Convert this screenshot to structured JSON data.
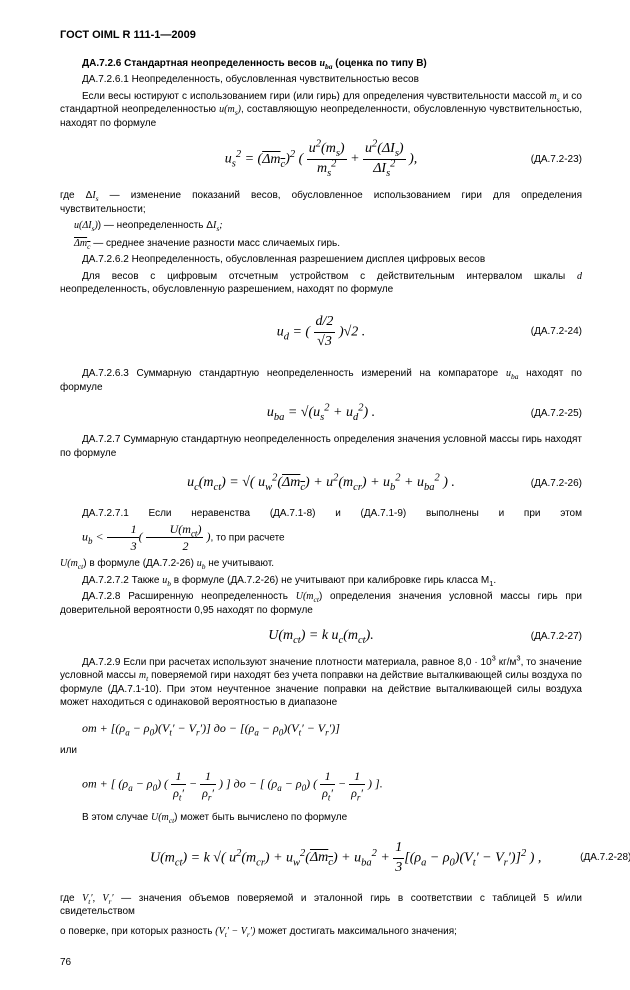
{
  "doc_id": "ГОСТ OIML R 111-1—2009",
  "page_number": "76",
  "sections": {
    "s1_title_prefix": "ДА.7.2.6 Стандартная неопределенность весов ",
    "s1_title_var": "u",
    "s1_title_sub": "ba",
    "s1_title_suffix": "  (оценка по типу В)",
    "s1_1": "ДА.7.2.6.1 Неопределенность, обусловленная чувствительностью весов",
    "s1_2a": "Если весы юстируют с использованием гири (или гирь) для определения чувствительности массой ",
    "s1_2b": " и со стандартной неопределенностью ",
    "s1_2c": ", составляющую неопределенности, обусловленную чувствительностью, находят по формуле",
    "eq23": "(ДА.7.2-23)",
    "s1_where_a": "где Δ",
    "s1_where_b": " — изменение показаний весов, обусловленное использованием гири для определения чувствительности;",
    "s1_where2a": "     u(Δ",
    "s1_where2b": ") — неопределенность Δ",
    "s1_where3": " — среднее значение разности масс сличаемых гирь.",
    "s2_1": "ДА.7.2.6.2 Неопределенность, обусловленная разрешением дисплея цифровых весов",
    "s2_2a": "Для весов с цифровым отсчетным устройством с действительным интервалом шкалы ",
    "s2_2b": "  неопределенность, обусловленную разрешением, находят по формуле",
    "eq24": "(ДА.7.2-24)",
    "s3_1a": "ДА.7.2.6.3 Суммарную стандартную неопределенность измерений на компараторе ",
    "s3_1b": " находят по формуле",
    "eq25": "(ДА.7.2-25)",
    "s4_1": "ДА.7.2.7 Суммарную стандартную неопределенность определения значения условной массы гирь находят по формуле",
    "eq26": "(ДА.7.2-26)",
    "s5_1a": "ДА.7.2.7.1 Если неравенства (ДА.7.1-8) и (ДА.7.1-9) выполнены и при этом   ",
    "s5_1b": ",  то при расчете",
    "s5_2a": "U(",
    "s5_2b": ")  в формуле (ДА.7.2-26) ",
    "s5_2c": "  не учитывают.",
    "s5_3a": "ДА.7.2.7.2 Также ",
    "s5_3b": "  в формуле (ДА.7.2-26) не учитывают при калибровке гирь класса M",
    "s5_3c": ".",
    "s6_1a": "ДА.7.2.8 Расширенную неопределенность ",
    "s6_1b": ")  определения значения  условной массы  гирь при доверительной вероятности 0,95  находят по формуле",
    "eq27": "(ДА.7.2-27)",
    "s7_1a": "ДА.7.2.9  Если при расчетах используют значение плотности материала, равное 8,0 · 10",
    "s7_1b": " кг/м",
    "s7_1c": ", то значение условной массы ",
    "s7_1d": " поверяемой гири находят без учета поправки на действие выталкивающей силы воздуха по формуле (ДА.7.1-10). При этом неучтенное значение поправки на действие выталкивающей силы воздуха может находиться с одинаковой вероятностью в диапазоне",
    "s7_or": "или",
    "s7_2a": "В этом случае ",
    "s7_2b": ")  может быть вычислено по формуле",
    "eq28": "(ДА.7.2-28)",
    "s8_1a": "где ",
    "s8_1b": "  — значения объемов поверяемой и эталонной гирь в соответствии с таблицей 5 и/или свидетельством",
    "s8_2a": "о поверке, при которых разность ",
    "s8_2b": "  может достигать максимального значения;"
  },
  "formulas": {
    "f23": "u<sub>s</sub><sup>2</sup> = (<span class=\"overline\">Δm<sub>c</sub></span>)<sup>2</sup> ( <span style=\"display:inline-block;vertical-align:middle;text-align:center;\"><span style=\"display:block;border-bottom:1px solid #000;padding:0 2px;\">u<sup>2</sup>(m<sub>s</sub>)</span><span style=\"display:block;padding:0 2px;\">m<sub>s</sub><sup>2</sup></span></span> + <span style=\"display:inline-block;vertical-align:middle;text-align:center;\"><span style=\"display:block;border-bottom:1px solid #000;padding:0 2px;\">u<sup>2</sup>(ΔI<sub>s</sub>)</span><span style=\"display:block;padding:0 2px;\">ΔI<sub>s</sub><sup>2</sup></span></span> ),",
    "f24": "u<sub>d</sub> = ( <span style=\"display:inline-block;vertical-align:middle;text-align:center;\"><span style=\"display:block;border-bottom:1px solid #000;padding:0 2px;\">d/2</span><span style=\"display:block;padding:0 2px;\">√3</span></span> )√2 .",
    "f25": "u<sub>ba</sub> = √(u<sub>s</sub><sup>2</sup> + u<sub>d</sub><sup>2</sup>) .",
    "f26": "u<sub>c</sub>(m<sub>ct</sub>) = √( u<sub>w</sub><sup>2</sup>(<span class=\"overline\">Δm<sub>c</sub></span>) + u<sup>2</sup>(m<sub>cr</sub>) + u<sub>b</sub><sup>2</sup> + u<sub>ba</sub><sup>2</sup> ) .",
    "f27": "U(m<sub>ct</sub>) = k u<sub>c</sub>(m<sub>ct</sub>).",
    "f_range1": "от + [(ρ<sub>a</sub> − ρ<sub>0</sub>)(V<sub>t</sub>′ − V<sub>r</sub>′)]   до − [(ρ<sub>a</sub> − ρ<sub>0</sub>)(V<sub>t</sub>′ − V<sub>r</sub>′)]",
    "f_range2": "от + [ (ρ<sub>a</sub> − ρ<sub>0</sub>) ( <span style=\"display:inline-block;vertical-align:middle;text-align:center;\"><span style=\"display:block;border-bottom:1px solid #000;padding:0 2px;\">1</span><span style=\"display:block;padding:0 2px;\">ρ<sub>t</sub>′</span></span> − <span style=\"display:inline-block;vertical-align:middle;text-align:center;\"><span style=\"display:block;border-bottom:1px solid #000;padding:0 2px;\">1</span><span style=\"display:block;padding:0 2px;\">ρ<sub>r</sub>′</span></span> ) ]   до − [ (ρ<sub>a</sub> − ρ<sub>0</sub>) ( <span style=\"display:inline-block;vertical-align:middle;text-align:center;\"><span style=\"display:block;border-bottom:1px solid #000;padding:0 2px;\">1</span><span style=\"display:block;padding:0 2px;\">ρ<sub>t</sub>′</span></span> − <span style=\"display:inline-block;vertical-align:middle;text-align:center;\"><span style=\"display:block;border-bottom:1px solid #000;padding:0 2px;\">1</span><span style=\"display:block;padding:0 2px;\">ρ<sub>r</sub>′</span></span> ) ].",
    "f28": "U(m<sub>ct</sub>) = k √( u<sup>2</sup>(m<sub>cr</sub>) + u<sub>w</sub><sup>2</sup>(<span class=\"overline\">Δm<sub>c</sub></span>) + u<sub>ba</sub><sup>2</sup> + <span style=\"display:inline-block;vertical-align:middle;text-align:center;\"><span style=\"display:block;border-bottom:1px solid #000;padding:0 2px;\">1</span><span style=\"display:block;padding:0 2px;\">3</span></span>[(ρ<sub>a</sub> − ρ<sub>0</sub>)(V<sub>t</sub>′ − V<sub>r</sub>′)]<sup>2</sup> ) ,",
    "inline_ub": "u<sub>b</sub> < <span style=\"display:inline-block;vertical-align:middle;text-align:center;\"><span style=\"display:block;border-bottom:1px solid #000;padding:0 2px;\">1</span><span style=\"display:block;padding:0 2px;\">3</span></span>( <span style=\"display:inline-block;vertical-align:middle;text-align:center;\"><span style=\"display:block;border-bottom:1px solid #000;padding:0 2px;\">U(m<sub>ct</sub>)</span><span style=\"display:block;padding:0 2px;\">2</span></span> )"
  }
}
